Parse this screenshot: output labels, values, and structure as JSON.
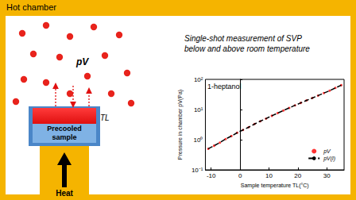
{
  "header": "Hot chamber",
  "diagram": {
    "vapor_label": "pV",
    "temperature_label": "TL",
    "sample_label": [
      "Precooled",
      "sample"
    ],
    "heat_label": "Heat"
  },
  "caption": [
    "Single-shot measurement of SVP",
    "below and above room temperature"
  ],
  "chart_data": {
    "type": "scatter",
    "annotation": "1-heptanol",
    "x_label": "Sample temperature TL(°C)",
    "y_label": "Pressure in chamber pV(Pa)",
    "x": [
      -11,
      -9,
      -7,
      -5,
      -3,
      -1,
      1,
      3,
      5,
      7,
      9,
      11,
      13,
      15,
      17,
      19,
      21,
      23,
      25,
      27,
      29,
      31,
      33,
      35
    ],
    "series": [
      {
        "name": "pV",
        "type": "scatter",
        "color": "#ff0000",
        "marker": "circle",
        "values": [
          0.5,
          0.63,
          0.8,
          1.05,
          1.32,
          1.7,
          2.1,
          2.6,
          3.3,
          4.1,
          5.0,
          6.2,
          7.6,
          9.3,
          11.3,
          13.8,
          16.6,
          20,
          24,
          29,
          35,
          42,
          52,
          64
        ]
      },
      {
        "name": "pV(l)",
        "type": "line",
        "color": "#000000",
        "line_style": "dashed",
        "values": [
          0.5,
          0.63,
          0.8,
          1.05,
          1.32,
          1.7,
          2.1,
          2.6,
          3.3,
          4.1,
          5.0,
          6.2,
          7.6,
          9.3,
          11.3,
          13.8,
          16.6,
          20,
          24,
          29,
          35,
          42,
          52,
          64
        ]
      }
    ],
    "xlim": [
      -12,
      36
    ],
    "xticks": [
      -10,
      0,
      10,
      20,
      30
    ],
    "ylim": [
      0.1,
      100
    ],
    "yticks": [
      {
        "value": 0.1,
        "label": "10⁻¹"
      },
      {
        "value": 1,
        "label": "10⁰"
      },
      {
        "value": 10,
        "label": "10¹"
      },
      {
        "value": 100,
        "label": "10²"
      }
    ],
    "log": "y",
    "legend": "lower right",
    "grid": false
  }
}
